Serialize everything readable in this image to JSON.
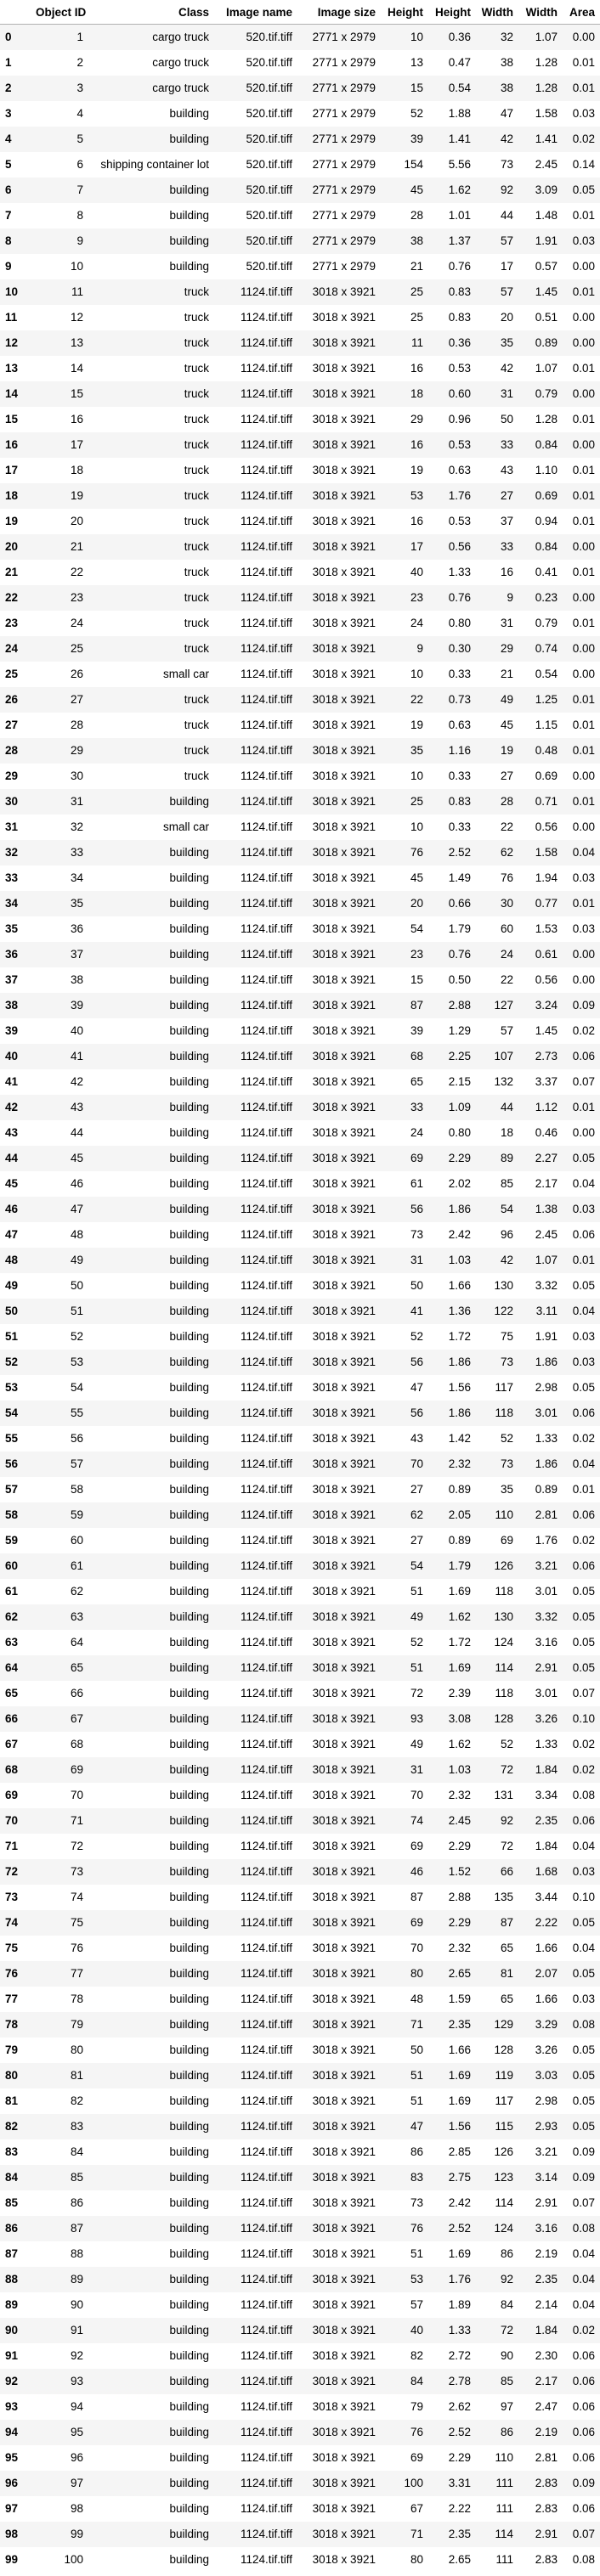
{
  "table": {
    "columns": [
      "",
      "Object ID",
      "Class",
      "Image name",
      "Image size",
      "Height",
      "Height",
      "Width",
      "Width",
      "Area"
    ],
    "rows": [
      [
        "0",
        "1",
        "cargo truck",
        "520.tif.tiff",
        "2771 x 2979",
        "10",
        "0.36",
        "32",
        "1.07",
        "0.00"
      ],
      [
        "1",
        "2",
        "cargo truck",
        "520.tif.tiff",
        "2771 x 2979",
        "13",
        "0.47",
        "38",
        "1.28",
        "0.01"
      ],
      [
        "2",
        "3",
        "cargo truck",
        "520.tif.tiff",
        "2771 x 2979",
        "15",
        "0.54",
        "38",
        "1.28",
        "0.01"
      ],
      [
        "3",
        "4",
        "building",
        "520.tif.tiff",
        "2771 x 2979",
        "52",
        "1.88",
        "47",
        "1.58",
        "0.03"
      ],
      [
        "4",
        "5",
        "building",
        "520.tif.tiff",
        "2771 x 2979",
        "39",
        "1.41",
        "42",
        "1.41",
        "0.02"
      ],
      [
        "5",
        "6",
        "shipping container lot",
        "520.tif.tiff",
        "2771 x 2979",
        "154",
        "5.56",
        "73",
        "2.45",
        "0.14"
      ],
      [
        "6",
        "7",
        "building",
        "520.tif.tiff",
        "2771 x 2979",
        "45",
        "1.62",
        "92",
        "3.09",
        "0.05"
      ],
      [
        "7",
        "8",
        "building",
        "520.tif.tiff",
        "2771 x 2979",
        "28",
        "1.01",
        "44",
        "1.48",
        "0.01"
      ],
      [
        "8",
        "9",
        "building",
        "520.tif.tiff",
        "2771 x 2979",
        "38",
        "1.37",
        "57",
        "1.91",
        "0.03"
      ],
      [
        "9",
        "10",
        "building",
        "520.tif.tiff",
        "2771 x 2979",
        "21",
        "0.76",
        "17",
        "0.57",
        "0.00"
      ],
      [
        "10",
        "11",
        "truck",
        "1124.tif.tiff",
        "3018 x 3921",
        "25",
        "0.83",
        "57",
        "1.45",
        "0.01"
      ],
      [
        "11",
        "12",
        "truck",
        "1124.tif.tiff",
        "3018 x 3921",
        "25",
        "0.83",
        "20",
        "0.51",
        "0.00"
      ],
      [
        "12",
        "13",
        "truck",
        "1124.tif.tiff",
        "3018 x 3921",
        "11",
        "0.36",
        "35",
        "0.89",
        "0.00"
      ],
      [
        "13",
        "14",
        "truck",
        "1124.tif.tiff",
        "3018 x 3921",
        "16",
        "0.53",
        "42",
        "1.07",
        "0.01"
      ],
      [
        "14",
        "15",
        "truck",
        "1124.tif.tiff",
        "3018 x 3921",
        "18",
        "0.60",
        "31",
        "0.79",
        "0.00"
      ],
      [
        "15",
        "16",
        "truck",
        "1124.tif.tiff",
        "3018 x 3921",
        "29",
        "0.96",
        "50",
        "1.28",
        "0.01"
      ],
      [
        "16",
        "17",
        "truck",
        "1124.tif.tiff",
        "3018 x 3921",
        "16",
        "0.53",
        "33",
        "0.84",
        "0.00"
      ],
      [
        "17",
        "18",
        "truck",
        "1124.tif.tiff",
        "3018 x 3921",
        "19",
        "0.63",
        "43",
        "1.10",
        "0.01"
      ],
      [
        "18",
        "19",
        "truck",
        "1124.tif.tiff",
        "3018 x 3921",
        "53",
        "1.76",
        "27",
        "0.69",
        "0.01"
      ],
      [
        "19",
        "20",
        "truck",
        "1124.tif.tiff",
        "3018 x 3921",
        "16",
        "0.53",
        "37",
        "0.94",
        "0.01"
      ],
      [
        "20",
        "21",
        "truck",
        "1124.tif.tiff",
        "3018 x 3921",
        "17",
        "0.56",
        "33",
        "0.84",
        "0.00"
      ],
      [
        "21",
        "22",
        "truck",
        "1124.tif.tiff",
        "3018 x 3921",
        "40",
        "1.33",
        "16",
        "0.41",
        "0.01"
      ],
      [
        "22",
        "23",
        "truck",
        "1124.tif.tiff",
        "3018 x 3921",
        "23",
        "0.76",
        "9",
        "0.23",
        "0.00"
      ],
      [
        "23",
        "24",
        "truck",
        "1124.tif.tiff",
        "3018 x 3921",
        "24",
        "0.80",
        "31",
        "0.79",
        "0.01"
      ],
      [
        "24",
        "25",
        "truck",
        "1124.tif.tiff",
        "3018 x 3921",
        "9",
        "0.30",
        "29",
        "0.74",
        "0.00"
      ],
      [
        "25",
        "26",
        "small car",
        "1124.tif.tiff",
        "3018 x 3921",
        "10",
        "0.33",
        "21",
        "0.54",
        "0.00"
      ],
      [
        "26",
        "27",
        "truck",
        "1124.tif.tiff",
        "3018 x 3921",
        "22",
        "0.73",
        "49",
        "1.25",
        "0.01"
      ],
      [
        "27",
        "28",
        "truck",
        "1124.tif.tiff",
        "3018 x 3921",
        "19",
        "0.63",
        "45",
        "1.15",
        "0.01"
      ],
      [
        "28",
        "29",
        "truck",
        "1124.tif.tiff",
        "3018 x 3921",
        "35",
        "1.16",
        "19",
        "0.48",
        "0.01"
      ],
      [
        "29",
        "30",
        "truck",
        "1124.tif.tiff",
        "3018 x 3921",
        "10",
        "0.33",
        "27",
        "0.69",
        "0.00"
      ],
      [
        "30",
        "31",
        "building",
        "1124.tif.tiff",
        "3018 x 3921",
        "25",
        "0.83",
        "28",
        "0.71",
        "0.01"
      ],
      [
        "31",
        "32",
        "small car",
        "1124.tif.tiff",
        "3018 x 3921",
        "10",
        "0.33",
        "22",
        "0.56",
        "0.00"
      ],
      [
        "32",
        "33",
        "building",
        "1124.tif.tiff",
        "3018 x 3921",
        "76",
        "2.52",
        "62",
        "1.58",
        "0.04"
      ],
      [
        "33",
        "34",
        "building",
        "1124.tif.tiff",
        "3018 x 3921",
        "45",
        "1.49",
        "76",
        "1.94",
        "0.03"
      ],
      [
        "34",
        "35",
        "building",
        "1124.tif.tiff",
        "3018 x 3921",
        "20",
        "0.66",
        "30",
        "0.77",
        "0.01"
      ],
      [
        "35",
        "36",
        "building",
        "1124.tif.tiff",
        "3018 x 3921",
        "54",
        "1.79",
        "60",
        "1.53",
        "0.03"
      ],
      [
        "36",
        "37",
        "building",
        "1124.tif.tiff",
        "3018 x 3921",
        "23",
        "0.76",
        "24",
        "0.61",
        "0.00"
      ],
      [
        "37",
        "38",
        "building",
        "1124.tif.tiff",
        "3018 x 3921",
        "15",
        "0.50",
        "22",
        "0.56",
        "0.00"
      ],
      [
        "38",
        "39",
        "building",
        "1124.tif.tiff",
        "3018 x 3921",
        "87",
        "2.88",
        "127",
        "3.24",
        "0.09"
      ],
      [
        "39",
        "40",
        "building",
        "1124.tif.tiff",
        "3018 x 3921",
        "39",
        "1.29",
        "57",
        "1.45",
        "0.02"
      ],
      [
        "40",
        "41",
        "building",
        "1124.tif.tiff",
        "3018 x 3921",
        "68",
        "2.25",
        "107",
        "2.73",
        "0.06"
      ],
      [
        "41",
        "42",
        "building",
        "1124.tif.tiff",
        "3018 x 3921",
        "65",
        "2.15",
        "132",
        "3.37",
        "0.07"
      ],
      [
        "42",
        "43",
        "building",
        "1124.tif.tiff",
        "3018 x 3921",
        "33",
        "1.09",
        "44",
        "1.12",
        "0.01"
      ],
      [
        "43",
        "44",
        "building",
        "1124.tif.tiff",
        "3018 x 3921",
        "24",
        "0.80",
        "18",
        "0.46",
        "0.00"
      ],
      [
        "44",
        "45",
        "building",
        "1124.tif.tiff",
        "3018 x 3921",
        "69",
        "2.29",
        "89",
        "2.27",
        "0.05"
      ],
      [
        "45",
        "46",
        "building",
        "1124.tif.tiff",
        "3018 x 3921",
        "61",
        "2.02",
        "85",
        "2.17",
        "0.04"
      ],
      [
        "46",
        "47",
        "building",
        "1124.tif.tiff",
        "3018 x 3921",
        "56",
        "1.86",
        "54",
        "1.38",
        "0.03"
      ],
      [
        "47",
        "48",
        "building",
        "1124.tif.tiff",
        "3018 x 3921",
        "73",
        "2.42",
        "96",
        "2.45",
        "0.06"
      ],
      [
        "48",
        "49",
        "building",
        "1124.tif.tiff",
        "3018 x 3921",
        "31",
        "1.03",
        "42",
        "1.07",
        "0.01"
      ],
      [
        "49",
        "50",
        "building",
        "1124.tif.tiff",
        "3018 x 3921",
        "50",
        "1.66",
        "130",
        "3.32",
        "0.05"
      ],
      [
        "50",
        "51",
        "building",
        "1124.tif.tiff",
        "3018 x 3921",
        "41",
        "1.36",
        "122",
        "3.11",
        "0.04"
      ],
      [
        "51",
        "52",
        "building",
        "1124.tif.tiff",
        "3018 x 3921",
        "52",
        "1.72",
        "75",
        "1.91",
        "0.03"
      ],
      [
        "52",
        "53",
        "building",
        "1124.tif.tiff",
        "3018 x 3921",
        "56",
        "1.86",
        "73",
        "1.86",
        "0.03"
      ],
      [
        "53",
        "54",
        "building",
        "1124.tif.tiff",
        "3018 x 3921",
        "47",
        "1.56",
        "117",
        "2.98",
        "0.05"
      ],
      [
        "54",
        "55",
        "building",
        "1124.tif.tiff",
        "3018 x 3921",
        "56",
        "1.86",
        "118",
        "3.01",
        "0.06"
      ],
      [
        "55",
        "56",
        "building",
        "1124.tif.tiff",
        "3018 x 3921",
        "43",
        "1.42",
        "52",
        "1.33",
        "0.02"
      ],
      [
        "56",
        "57",
        "building",
        "1124.tif.tiff",
        "3018 x 3921",
        "70",
        "2.32",
        "73",
        "1.86",
        "0.04"
      ],
      [
        "57",
        "58",
        "building",
        "1124.tif.tiff",
        "3018 x 3921",
        "27",
        "0.89",
        "35",
        "0.89",
        "0.01"
      ],
      [
        "58",
        "59",
        "building",
        "1124.tif.tiff",
        "3018 x 3921",
        "62",
        "2.05",
        "110",
        "2.81",
        "0.06"
      ],
      [
        "59",
        "60",
        "building",
        "1124.tif.tiff",
        "3018 x 3921",
        "27",
        "0.89",
        "69",
        "1.76",
        "0.02"
      ],
      [
        "60",
        "61",
        "building",
        "1124.tif.tiff",
        "3018 x 3921",
        "54",
        "1.79",
        "126",
        "3.21",
        "0.06"
      ],
      [
        "61",
        "62",
        "building",
        "1124.tif.tiff",
        "3018 x 3921",
        "51",
        "1.69",
        "118",
        "3.01",
        "0.05"
      ],
      [
        "62",
        "63",
        "building",
        "1124.tif.tiff",
        "3018 x 3921",
        "49",
        "1.62",
        "130",
        "3.32",
        "0.05"
      ],
      [
        "63",
        "64",
        "building",
        "1124.tif.tiff",
        "3018 x 3921",
        "52",
        "1.72",
        "124",
        "3.16",
        "0.05"
      ],
      [
        "64",
        "65",
        "building",
        "1124.tif.tiff",
        "3018 x 3921",
        "51",
        "1.69",
        "114",
        "2.91",
        "0.05"
      ],
      [
        "65",
        "66",
        "building",
        "1124.tif.tiff",
        "3018 x 3921",
        "72",
        "2.39",
        "118",
        "3.01",
        "0.07"
      ],
      [
        "66",
        "67",
        "building",
        "1124.tif.tiff",
        "3018 x 3921",
        "93",
        "3.08",
        "128",
        "3.26",
        "0.10"
      ],
      [
        "67",
        "68",
        "building",
        "1124.tif.tiff",
        "3018 x 3921",
        "49",
        "1.62",
        "52",
        "1.33",
        "0.02"
      ],
      [
        "68",
        "69",
        "building",
        "1124.tif.tiff",
        "3018 x 3921",
        "31",
        "1.03",
        "72",
        "1.84",
        "0.02"
      ],
      [
        "69",
        "70",
        "building",
        "1124.tif.tiff",
        "3018 x 3921",
        "70",
        "2.32",
        "131",
        "3.34",
        "0.08"
      ],
      [
        "70",
        "71",
        "building",
        "1124.tif.tiff",
        "3018 x 3921",
        "74",
        "2.45",
        "92",
        "2.35",
        "0.06"
      ],
      [
        "71",
        "72",
        "building",
        "1124.tif.tiff",
        "3018 x 3921",
        "69",
        "2.29",
        "72",
        "1.84",
        "0.04"
      ],
      [
        "72",
        "73",
        "building",
        "1124.tif.tiff",
        "3018 x 3921",
        "46",
        "1.52",
        "66",
        "1.68",
        "0.03"
      ],
      [
        "73",
        "74",
        "building",
        "1124.tif.tiff",
        "3018 x 3921",
        "87",
        "2.88",
        "135",
        "3.44",
        "0.10"
      ],
      [
        "74",
        "75",
        "building",
        "1124.tif.tiff",
        "3018 x 3921",
        "69",
        "2.29",
        "87",
        "2.22",
        "0.05"
      ],
      [
        "75",
        "76",
        "building",
        "1124.tif.tiff",
        "3018 x 3921",
        "70",
        "2.32",
        "65",
        "1.66",
        "0.04"
      ],
      [
        "76",
        "77",
        "building",
        "1124.tif.tiff",
        "3018 x 3921",
        "80",
        "2.65",
        "81",
        "2.07",
        "0.05"
      ],
      [
        "77",
        "78",
        "building",
        "1124.tif.tiff",
        "3018 x 3921",
        "48",
        "1.59",
        "65",
        "1.66",
        "0.03"
      ],
      [
        "78",
        "79",
        "building",
        "1124.tif.tiff",
        "3018 x 3921",
        "71",
        "2.35",
        "129",
        "3.29",
        "0.08"
      ],
      [
        "79",
        "80",
        "building",
        "1124.tif.tiff",
        "3018 x 3921",
        "50",
        "1.66",
        "128",
        "3.26",
        "0.05"
      ],
      [
        "80",
        "81",
        "building",
        "1124.tif.tiff",
        "3018 x 3921",
        "51",
        "1.69",
        "119",
        "3.03",
        "0.05"
      ],
      [
        "81",
        "82",
        "building",
        "1124.tif.tiff",
        "3018 x 3921",
        "51",
        "1.69",
        "117",
        "2.98",
        "0.05"
      ],
      [
        "82",
        "83",
        "building",
        "1124.tif.tiff",
        "3018 x 3921",
        "47",
        "1.56",
        "115",
        "2.93",
        "0.05"
      ],
      [
        "83",
        "84",
        "building",
        "1124.tif.tiff",
        "3018 x 3921",
        "86",
        "2.85",
        "126",
        "3.21",
        "0.09"
      ],
      [
        "84",
        "85",
        "building",
        "1124.tif.tiff",
        "3018 x 3921",
        "83",
        "2.75",
        "123",
        "3.14",
        "0.09"
      ],
      [
        "85",
        "86",
        "building",
        "1124.tif.tiff",
        "3018 x 3921",
        "73",
        "2.42",
        "114",
        "2.91",
        "0.07"
      ],
      [
        "86",
        "87",
        "building",
        "1124.tif.tiff",
        "3018 x 3921",
        "76",
        "2.52",
        "124",
        "3.16",
        "0.08"
      ],
      [
        "87",
        "88",
        "building",
        "1124.tif.tiff",
        "3018 x 3921",
        "51",
        "1.69",
        "86",
        "2.19",
        "0.04"
      ],
      [
        "88",
        "89",
        "building",
        "1124.tif.tiff",
        "3018 x 3921",
        "53",
        "1.76",
        "92",
        "2.35",
        "0.04"
      ],
      [
        "89",
        "90",
        "building",
        "1124.tif.tiff",
        "3018 x 3921",
        "57",
        "1.89",
        "84",
        "2.14",
        "0.04"
      ],
      [
        "90",
        "91",
        "building",
        "1124.tif.tiff",
        "3018 x 3921",
        "40",
        "1.33",
        "72",
        "1.84",
        "0.02"
      ],
      [
        "91",
        "92",
        "building",
        "1124.tif.tiff",
        "3018 x 3921",
        "82",
        "2.72",
        "90",
        "2.30",
        "0.06"
      ],
      [
        "92",
        "93",
        "building",
        "1124.tif.tiff",
        "3018 x 3921",
        "84",
        "2.78",
        "85",
        "2.17",
        "0.06"
      ],
      [
        "93",
        "94",
        "building",
        "1124.tif.tiff",
        "3018 x 3921",
        "79",
        "2.62",
        "97",
        "2.47",
        "0.06"
      ],
      [
        "94",
        "95",
        "building",
        "1124.tif.tiff",
        "3018 x 3921",
        "76",
        "2.52",
        "86",
        "2.19",
        "0.06"
      ],
      [
        "95",
        "96",
        "building",
        "1124.tif.tiff",
        "3018 x 3921",
        "69",
        "2.29",
        "110",
        "2.81",
        "0.06"
      ],
      [
        "96",
        "97",
        "building",
        "1124.tif.tiff",
        "3018 x 3921",
        "100",
        "3.31",
        "111",
        "2.83",
        "0.09"
      ],
      [
        "97",
        "98",
        "building",
        "1124.tif.tiff",
        "3018 x 3921",
        "67",
        "2.22",
        "111",
        "2.83",
        "0.06"
      ],
      [
        "98",
        "99",
        "building",
        "1124.tif.tiff",
        "3018 x 3921",
        "71",
        "2.35",
        "114",
        "2.91",
        "0.07"
      ],
      [
        "99",
        "100",
        "building",
        "1124.tif.tiff",
        "3018 x 3921",
        "80",
        "2.65",
        "111",
        "2.83",
        "0.08"
      ]
    ]
  }
}
